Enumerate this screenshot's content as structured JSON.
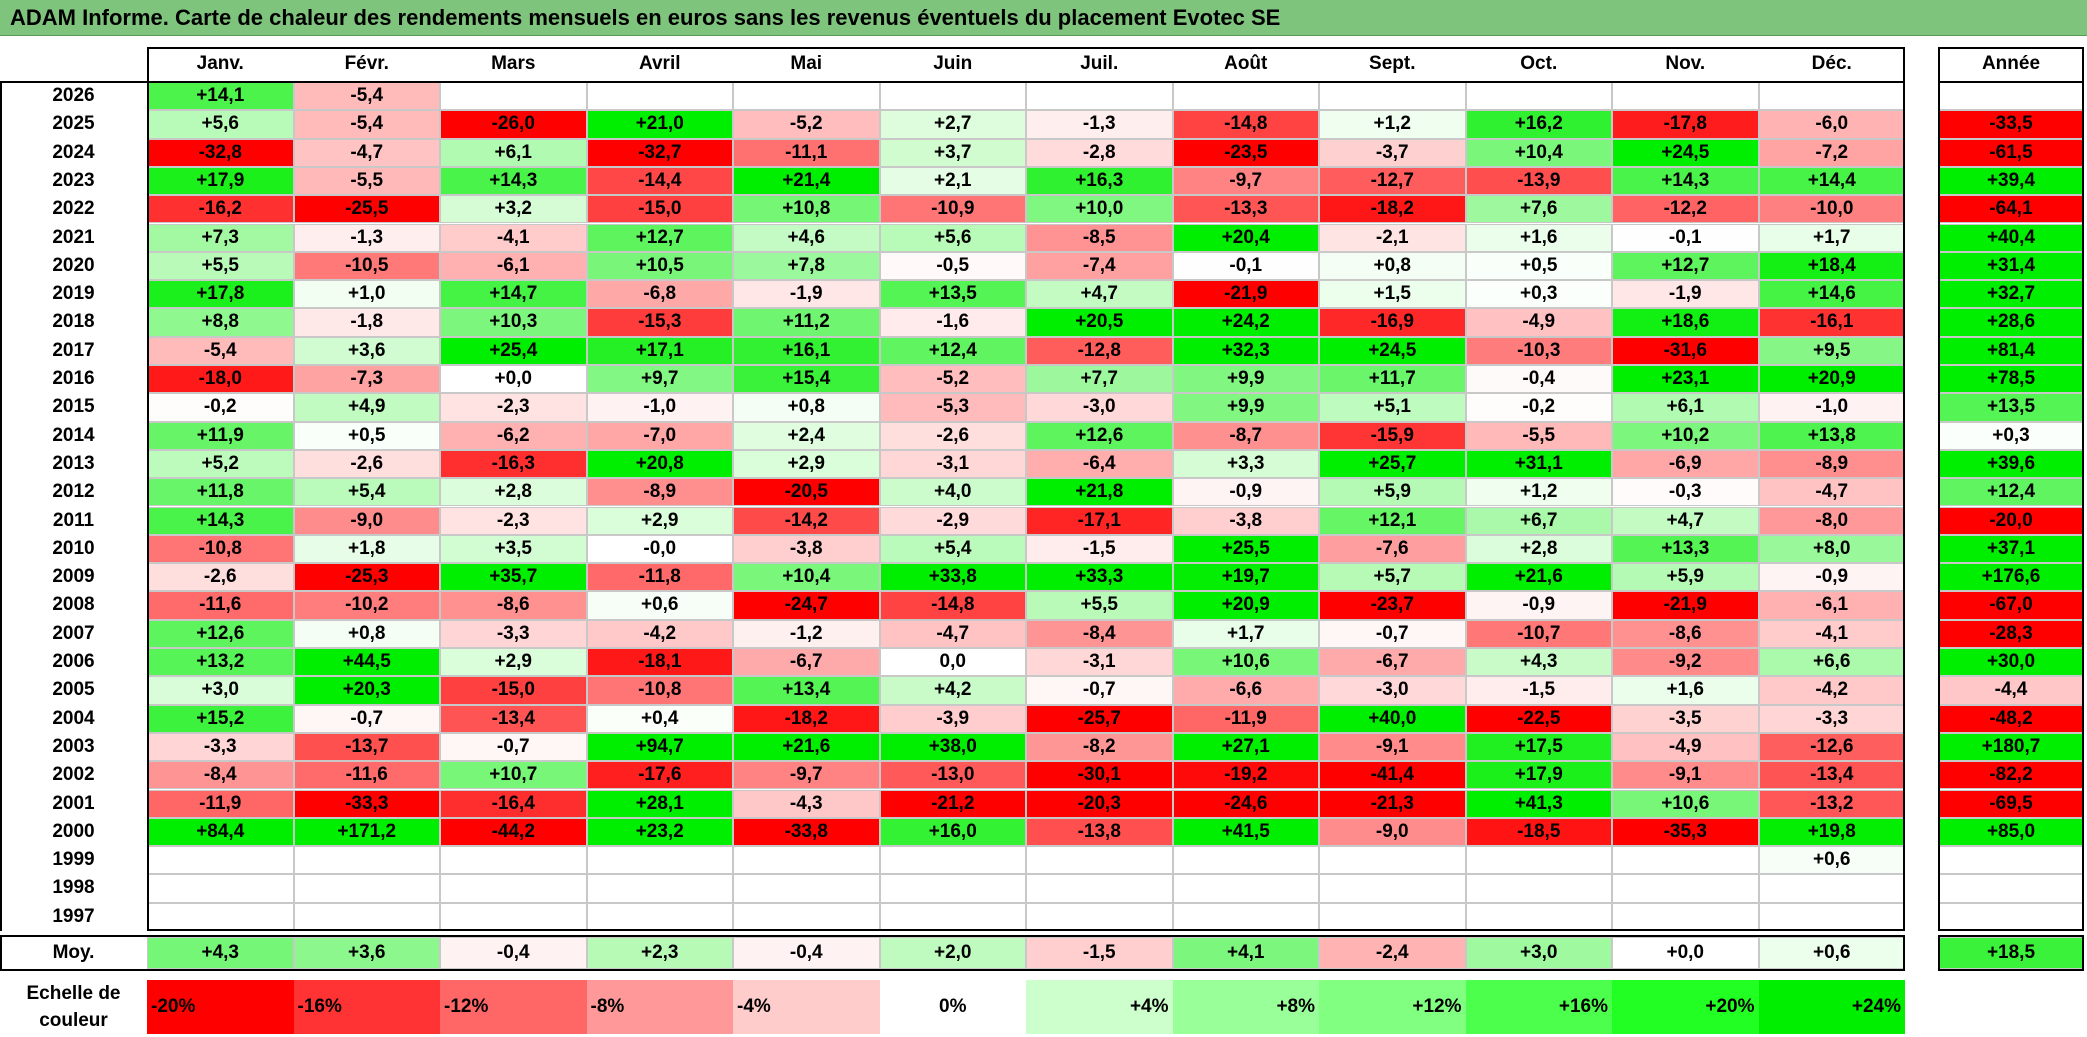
{
  "title": "ADAM Informe. Carte de chaleur des rendements mensuels en euros sans les revenus éventuels du placement Evotec SE",
  "chart_data": {
    "type": "heatmap",
    "title": "ADAM Informe. Carte de chaleur des rendements mensuels en euros sans les revenus éventuels du placement Evotec SE",
    "months": [
      "Janv.",
      "Févr.",
      "Mars",
      "Avril",
      "Mai",
      "Juin",
      "Juil.",
      "Août",
      "Sept.",
      "Oct.",
      "Nov.",
      "Déc."
    ],
    "year_header": "Année",
    "rows": [
      {
        "year": "2026",
        "values": [
          "+14,1",
          "-5,4",
          "",
          "",
          "",
          "",
          "",
          "",
          "",
          "",
          "",
          ""
        ],
        "annual": ""
      },
      {
        "year": "2025",
        "values": [
          "+5,6",
          "-5,4",
          "-26,0",
          "+21,0",
          "-5,2",
          "+2,7",
          "-1,3",
          "-14,8",
          "+1,2",
          "+16,2",
          "-17,8",
          "-6,0"
        ],
        "annual": "-33,5"
      },
      {
        "year": "2024",
        "values": [
          "-32,8",
          "-4,7",
          "+6,1",
          "-32,7",
          "-11,1",
          "+3,7",
          "-2,8",
          "-23,5",
          "-3,7",
          "+10,4",
          "+24,5",
          "-7,2"
        ],
        "annual": "-61,5"
      },
      {
        "year": "2023",
        "values": [
          "+17,9",
          "-5,5",
          "+14,3",
          "-14,4",
          "+21,4",
          "+2,1",
          "+16,3",
          "-9,7",
          "-12,7",
          "-13,9",
          "+14,3",
          "+14,4"
        ],
        "annual": "+39,4"
      },
      {
        "year": "2022",
        "values": [
          "-16,2",
          "-25,5",
          "+3,2",
          "-15,0",
          "+10,8",
          "-10,9",
          "+10,0",
          "-13,3",
          "-18,2",
          "+7,6",
          "-12,2",
          "-10,0"
        ],
        "annual": "-64,1"
      },
      {
        "year": "2021",
        "values": [
          "+7,3",
          "-1,3",
          "-4,1",
          "+12,7",
          "+4,6",
          "+5,6",
          "-8,5",
          "+20,4",
          "-2,1",
          "+1,6",
          "-0,1",
          "+1,7"
        ],
        "annual": "+40,4"
      },
      {
        "year": "2020",
        "values": [
          "+5,5",
          "-10,5",
          "-6,1",
          "+10,5",
          "+7,8",
          "-0,5",
          "-7,4",
          "-0,1",
          "+0,8",
          "+0,5",
          "+12,7",
          "+18,4"
        ],
        "annual": "+31,4"
      },
      {
        "year": "2019",
        "values": [
          "+17,8",
          "+1,0",
          "+14,7",
          "-6,8",
          "-1,9",
          "+13,5",
          "+4,7",
          "-21,9",
          "+1,5",
          "+0,3",
          "-1,9",
          "+14,6"
        ],
        "annual": "+32,7"
      },
      {
        "year": "2018",
        "values": [
          "+8,8",
          "-1,8",
          "+10,3",
          "-15,3",
          "+11,2",
          "-1,6",
          "+20,5",
          "+24,2",
          "-16,9",
          "-4,9",
          "+18,6",
          "-16,1"
        ],
        "annual": "+28,6"
      },
      {
        "year": "2017",
        "values": [
          "-5,4",
          "+3,6",
          "+25,4",
          "+17,1",
          "+16,1",
          "+12,4",
          "-12,8",
          "+32,3",
          "+24,5",
          "-10,3",
          "-31,6",
          "+9,5"
        ],
        "annual": "+81,4"
      },
      {
        "year": "2016",
        "values": [
          "-18,0",
          "-7,3",
          "+0,0",
          "+9,7",
          "+15,4",
          "-5,2",
          "+7,7",
          "+9,9",
          "+11,7",
          "-0,4",
          "+23,1",
          "+20,9"
        ],
        "annual": "+78,5"
      },
      {
        "year": "2015",
        "values": [
          "-0,2",
          "+4,9",
          "-2,3",
          "-1,0",
          "+0,8",
          "-5,3",
          "-3,0",
          "+9,9",
          "+5,1",
          "-0,2",
          "+6,1",
          "-1,0"
        ],
        "annual": "+13,5"
      },
      {
        "year": "2014",
        "values": [
          "+11,9",
          "+0,5",
          "-6,2",
          "-7,0",
          "+2,4",
          "-2,6",
          "+12,6",
          "-8,7",
          "-15,9",
          "-5,5",
          "+10,2",
          "+13,8"
        ],
        "annual": "+0,3"
      },
      {
        "year": "2013",
        "values": [
          "+5,2",
          "-2,6",
          "-16,3",
          "+20,8",
          "+2,9",
          "-3,1",
          "-6,4",
          "+3,3",
          "+25,7",
          "+31,1",
          "-6,9",
          "-8,9"
        ],
        "annual": "+39,6"
      },
      {
        "year": "2012",
        "values": [
          "+11,8",
          "+5,4",
          "+2,8",
          "-8,9",
          "-20,5",
          "+4,0",
          "+21,8",
          "-0,9",
          "+5,9",
          "+1,2",
          "-0,3",
          "-4,7"
        ],
        "annual": "+12,4"
      },
      {
        "year": "2011",
        "values": [
          "+14,3",
          "-9,0",
          "-2,3",
          "+2,9",
          "-14,2",
          "-2,9",
          "-17,1",
          "-3,8",
          "+12,1",
          "+6,7",
          "+4,7",
          "-8,0"
        ],
        "annual": "-20,0"
      },
      {
        "year": "2010",
        "values": [
          "-10,8",
          "+1,8",
          "+3,5",
          "-0,0",
          "-3,8",
          "+5,4",
          "-1,5",
          "+25,5",
          "-7,6",
          "+2,8",
          "+13,3",
          "+8,0"
        ],
        "annual": "+37,1"
      },
      {
        "year": "2009",
        "values": [
          "-2,6",
          "-25,3",
          "+35,7",
          "-11,8",
          "+10,4",
          "+33,8",
          "+33,3",
          "+19,7",
          "+5,7",
          "+21,6",
          "+5,9",
          "-0,9"
        ],
        "annual": "+176,6"
      },
      {
        "year": "2008",
        "values": [
          "-11,6",
          "-10,2",
          "-8,6",
          "+0,6",
          "-24,7",
          "-14,8",
          "+5,5",
          "+20,9",
          "-23,7",
          "-0,9",
          "-21,9",
          "-6,1"
        ],
        "annual": "-67,0"
      },
      {
        "year": "2007",
        "values": [
          "+12,6",
          "+0,8",
          "-3,3",
          "-4,2",
          "-1,2",
          "-4,7",
          "-8,4",
          "+1,7",
          "-0,7",
          "-10,7",
          "-8,6",
          "-4,1"
        ],
        "annual": "-28,3"
      },
      {
        "year": "2006",
        "values": [
          "+13,2",
          "+44,5",
          "+2,9",
          "-18,1",
          "-6,7",
          "0,0",
          "-3,1",
          "+10,6",
          "-6,7",
          "+4,3",
          "-9,2",
          "+6,6"
        ],
        "annual": "+30,0"
      },
      {
        "year": "2005",
        "values": [
          "+3,0",
          "+20,3",
          "-15,0",
          "-10,8",
          "+13,4",
          "+4,2",
          "-0,7",
          "-6,6",
          "-3,0",
          "-1,5",
          "+1,6",
          "-4,2"
        ],
        "annual": "-4,4"
      },
      {
        "year": "2004",
        "values": [
          "+15,2",
          "-0,7",
          "-13,4",
          "+0,4",
          "-18,2",
          "-3,9",
          "-25,7",
          "-11,9",
          "+40,0",
          "-22,5",
          "-3,5",
          "-3,3"
        ],
        "annual": "-48,2"
      },
      {
        "year": "2003",
        "values": [
          "-3,3",
          "-13,7",
          "-0,7",
          "+94,7",
          "+21,6",
          "+38,0",
          "-8,2",
          "+27,1",
          "-9,1",
          "+17,5",
          "-4,9",
          "-12,6"
        ],
        "annual": "+180,7"
      },
      {
        "year": "2002",
        "values": [
          "-8,4",
          "-11,6",
          "+10,7",
          "-17,6",
          "-9,7",
          "-13,0",
          "-30,1",
          "-19,2",
          "-41,4",
          "+17,9",
          "-9,1",
          "-13,4"
        ],
        "annual": "-82,2"
      },
      {
        "year": "2001",
        "values": [
          "-11,9",
          "-33,3",
          "-16,4",
          "+28,1",
          "-4,3",
          "-21,2",
          "-20,3",
          "-24,6",
          "-21,3",
          "+41,3",
          "+10,6",
          "-13,2"
        ],
        "annual": "-69,5"
      },
      {
        "year": "2000",
        "values": [
          "+84,4",
          "+171,2",
          "-44,2",
          "+23,2",
          "-33,8",
          "+16,0",
          "-13,8",
          "+41,5",
          "-9,0",
          "-18,5",
          "-35,3",
          "+19,8"
        ],
        "annual": "+85,0"
      },
      {
        "year": "1999",
        "values": [
          "",
          "",
          "",
          "",
          "",
          "",
          "",
          "",
          "",
          "",
          "",
          "+0,6"
        ],
        "annual": ""
      },
      {
        "year": "1998",
        "values": [
          "",
          "",
          "",
          "",
          "",
          "",
          "",
          "",
          "",
          "",
          "",
          ""
        ],
        "annual": ""
      },
      {
        "year": "1997",
        "values": [
          "",
          "",
          "",
          "",
          "",
          "",
          "",
          "",
          "",
          "",
          "",
          ""
        ],
        "annual": ""
      }
    ],
    "average": {
      "label": "Moy.",
      "values": [
        "+4,3",
        "+3,6",
        "-0,4",
        "+2,3",
        "-0,4",
        "+2,0",
        "-1,5",
        "+4,1",
        "-2,4",
        "+3,0",
        "+0,0",
        "+0,6"
      ],
      "annual": "+18,5"
    },
    "color_scale": {
      "label": "Echelle de couleur",
      "stops": [
        "-20%",
        "-16%",
        "-12%",
        "-8%",
        "-4%",
        "0%",
        "+4%",
        "+8%",
        "+12%",
        "+16%",
        "+20%",
        "+24%"
      ],
      "colors": [
        "#ff0000",
        "#ff3333",
        "#ff6666",
        "#ff9999",
        "#ffcccc",
        "#ffffff",
        "#ccffcc",
        "#99ff99",
        "#80ff80",
        "#4dff4d",
        "#22ff22",
        "#00ee00"
      ]
    },
    "colors": {
      "negative": "#ff0000",
      "positive": "#00ee00",
      "neutral": "#ffffff",
      "title_bg": "#7fc47d"
    }
  }
}
